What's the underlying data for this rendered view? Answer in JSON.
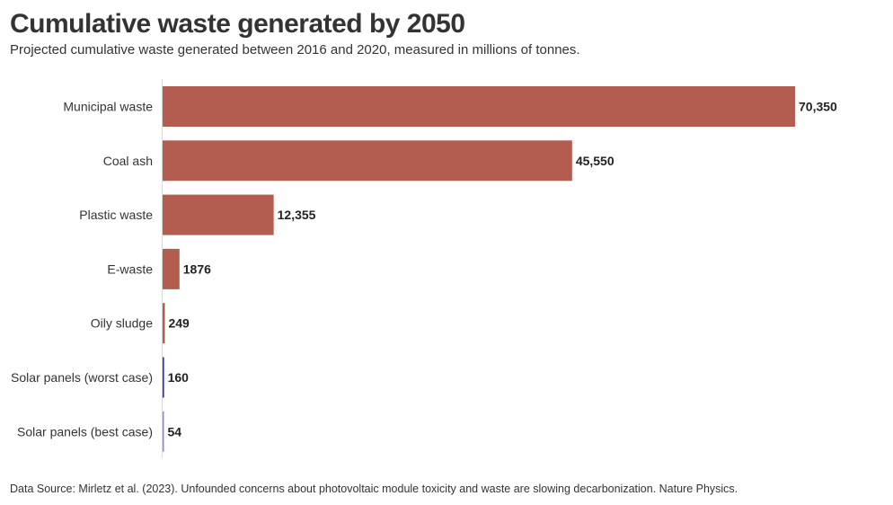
{
  "title": "Cumulative waste generated by 2050",
  "subtitle": "Projected cumulative waste generated between 2016 and 2020, measured in millions of tonnes.",
  "source": "Data Source: Mirletz et al. (2023). Unfounded concerns about photovoltaic module toxicity and waste are slowing decarbonization. Nature Physics.",
  "chart_data": {
    "type": "bar",
    "orientation": "horizontal",
    "title": "Cumulative waste generated by 2050",
    "subtitle": "Projected cumulative waste generated between 2016 and 2020, measured in millions of tonnes.",
    "categories": [
      "Municipal waste",
      "Coal ash",
      "Plastic waste",
      "E-waste",
      "Oily sludge",
      "Solar panels (worst case)",
      "Solar panels (best case)"
    ],
    "values": [
      70350,
      45550,
      12355,
      1876,
      249,
      160,
      54
    ],
    "value_labels": [
      "70,350",
      "45,550",
      "12,355",
      "1876",
      "249",
      "160",
      "54"
    ],
    "colors": [
      "#b35c50",
      "#b35c50",
      "#b35c50",
      "#b35c50",
      "#b35c50",
      "#2b2bc9",
      "#8a8ae6"
    ],
    "xlim": [
      0,
      70350
    ],
    "grid": false,
    "legend": "none"
  }
}
